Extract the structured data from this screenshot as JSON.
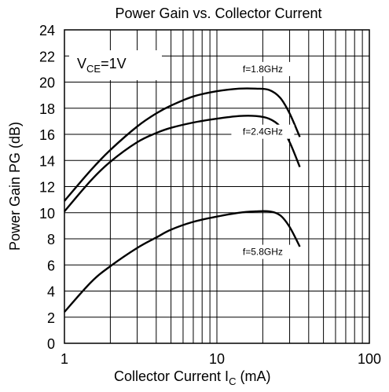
{
  "chart_data": {
    "type": "line",
    "title": "Power Gain vs. Collector Current",
    "xlabel": "Collector Current   I",
    "xlabel_sub": "C",
    "xlabel_unit": " (mA)",
    "ylabel": "Power Gain   PG (dB)",
    "x_scale": "log",
    "xlim": [
      1,
      100
    ],
    "ylim": [
      0,
      24
    ],
    "x_ticks": [
      "1",
      "10",
      "100"
    ],
    "y_ticks": [
      "0",
      "2",
      "4",
      "6",
      "8",
      "10",
      "12",
      "14",
      "16",
      "18",
      "20",
      "22",
      "24"
    ],
    "grid": true,
    "annotation": {
      "main": "V",
      "sub": "CE",
      "rest": "=1V"
    },
    "series": [
      {
        "name": "f=1.8GHz",
        "x": [
          1,
          1.5,
          2,
          3,
          4,
          5,
          7,
          10,
          14,
          18,
          22,
          26,
          30,
          35
        ],
        "y": [
          10.9,
          13.3,
          14.8,
          16.6,
          17.6,
          18.2,
          18.9,
          19.3,
          19.5,
          19.5,
          19.4,
          18.8,
          17.6,
          15.8
        ]
      },
      {
        "name": "f=2.4GHz",
        "x": [
          1,
          1.5,
          2,
          3,
          4,
          5,
          7,
          10,
          14,
          18,
          22,
          26,
          30,
          35
        ],
        "y": [
          10.1,
          12.5,
          13.9,
          15.4,
          16.1,
          16.5,
          16.9,
          17.2,
          17.4,
          17.4,
          17.2,
          16.6,
          15.4,
          13.5
        ]
      },
      {
        "name": "f=5.8GHz",
        "x": [
          1,
          1.5,
          2,
          3,
          4,
          5,
          7,
          10,
          14,
          18,
          22,
          26,
          30,
          35
        ],
        "y": [
          2.4,
          4.7,
          5.9,
          7.3,
          8.1,
          8.7,
          9.3,
          9.7,
          10.0,
          10.1,
          10.1,
          9.8,
          8.9,
          7.4
        ]
      }
    ]
  }
}
